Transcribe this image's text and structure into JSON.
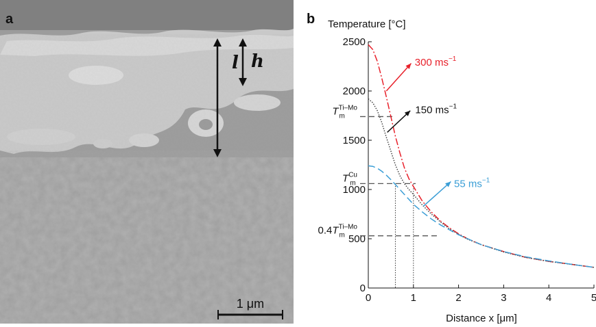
{
  "panel_a": {
    "label": "a",
    "arrow_l": "l",
    "arrow_h": "h",
    "scale_bar": "1 μm"
  },
  "panel_b": {
    "label": "b"
  },
  "chart_data": {
    "type": "line",
    "title": "",
    "ylabel": "Temperature [°C]",
    "xlabel": "Distance x [μm]",
    "xlim": [
      0,
      5
    ],
    "ylim": [
      0,
      2500
    ],
    "xticks": [
      "0",
      "1",
      "2",
      "3",
      "4",
      "5"
    ],
    "yticks": [
      "0",
      "500",
      "1000",
      "1500",
      "2000",
      "2500"
    ],
    "grid": false,
    "series": [
      {
        "name": "300 ms⁻¹",
        "color": "#e8202a",
        "style": "dashdot",
        "x": [
          0,
          0.1,
          0.2,
          0.3,
          0.4,
          0.5,
          0.6,
          0.7,
          0.8,
          0.9,
          1.0,
          1.2,
          1.4,
          1.6,
          1.8,
          2.0,
          2.2,
          2.5,
          3.0,
          3.5,
          4.0,
          4.5,
          5.0
        ],
        "y": [
          2470,
          2420,
          2300,
          2130,
          1940,
          1740,
          1540,
          1370,
          1220,
          1110,
          1030,
          880,
          770,
          680,
          610,
          550,
          500,
          440,
          370,
          310,
          270,
          240,
          210
        ]
      },
      {
        "name": "150 ms⁻¹",
        "color": "#444444",
        "style": "dotted",
        "x": [
          0,
          0.1,
          0.2,
          0.3,
          0.4,
          0.5,
          0.6,
          0.7,
          0.8,
          0.9,
          1.0,
          1.2,
          1.4,
          1.6,
          1.8,
          2.0,
          2.2,
          2.5,
          3.0,
          3.5,
          4.0,
          4.5,
          5.0
        ],
        "y": [
          1920,
          1880,
          1800,
          1680,
          1530,
          1390,
          1250,
          1140,
          1060,
          1000,
          950,
          840,
          750,
          670,
          600,
          545,
          495,
          440,
          365,
          310,
          270,
          240,
          210
        ]
      },
      {
        "name": "55 ms⁻¹",
        "color": "#3b9ed6",
        "style": "dashed",
        "x": [
          0,
          0.1,
          0.2,
          0.3,
          0.4,
          0.5,
          0.6,
          0.7,
          0.8,
          0.9,
          1.0,
          1.2,
          1.4,
          1.6,
          1.8,
          2.0,
          2.2,
          2.5,
          3.0,
          3.5,
          4.0,
          4.5,
          5.0
        ],
        "y": [
          1240,
          1235,
          1215,
          1185,
          1145,
          1100,
          1050,
          1000,
          950,
          900,
          850,
          770,
          700,
          640,
          590,
          540,
          500,
          440,
          370,
          315,
          275,
          240,
          210
        ]
      }
    ],
    "reference_lines": [
      {
        "label": "T_m^Ti–Mo",
        "base": "T",
        "sub": "m",
        "sup": "Ti–Mo",
        "prefix": "",
        "y": 1740
      },
      {
        "label": "T_m^Cu",
        "base": "T",
        "sub": "m",
        "sup": "Cu",
        "prefix": "",
        "y": 1060
      },
      {
        "label": "0.4 T_m^Ti–Mo",
        "base": "T",
        "sub": "m",
        "sup": "Ti–Mo",
        "prefix": "0.4",
        "y": 530
      }
    ],
    "vertical_markers": [
      0.6,
      1.0
    ],
    "annotations": [
      {
        "text": "300 ms",
        "sup": "−1",
        "color": "#e8202a",
        "series": 0
      },
      {
        "text": "150 ms",
        "sup": "−1",
        "color": "#111111",
        "series": 1
      },
      {
        "text": "55 ms",
        "sup": "−1",
        "color": "#3b9ed6",
        "series": 2
      }
    ]
  }
}
